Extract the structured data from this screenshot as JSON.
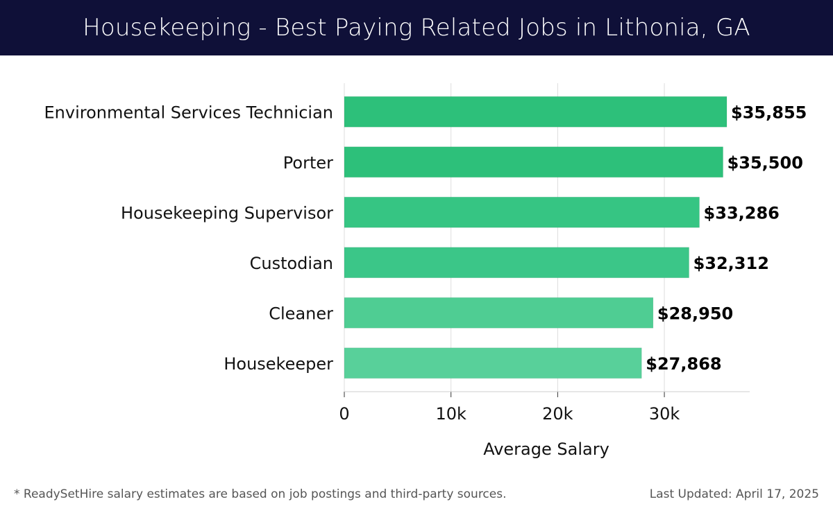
{
  "header": {
    "title": "Housekeeping - Best Paying Related Jobs in Lithonia, GA"
  },
  "chart_data": {
    "type": "bar",
    "orientation": "horizontal",
    "title": "Housekeeping - Best Paying Related Jobs in Lithonia, GA",
    "xlabel": "Average Salary",
    "ylabel": "",
    "xlim": [
      0,
      38000
    ],
    "x_ticks": [
      0,
      10000,
      20000,
      30000
    ],
    "x_tick_labels": [
      "0",
      "10k",
      "20k",
      "30k"
    ],
    "grid": "vertical",
    "legend": "none",
    "categories": [
      "Environmental Services Technician",
      "Porter",
      "Housekeeping Supervisor",
      "Custodian",
      "Cleaner",
      "Housekeeper"
    ],
    "values": [
      35855,
      35500,
      33286,
      32312,
      28950,
      27868
    ],
    "value_labels": [
      "$35,855",
      "$35,500",
      "$33,286",
      "$32,312",
      "$28,950",
      "$27,868"
    ],
    "bar_colors": [
      "#2dc07a",
      "#2dc07a",
      "#36c583",
      "#3bc688",
      "#4fcd93",
      "#58d09a"
    ]
  },
  "footer": {
    "note": "* ReadySetHire salary estimates are based on job postings and third-party sources.",
    "updated": "Last Updated: April 17, 2025"
  }
}
